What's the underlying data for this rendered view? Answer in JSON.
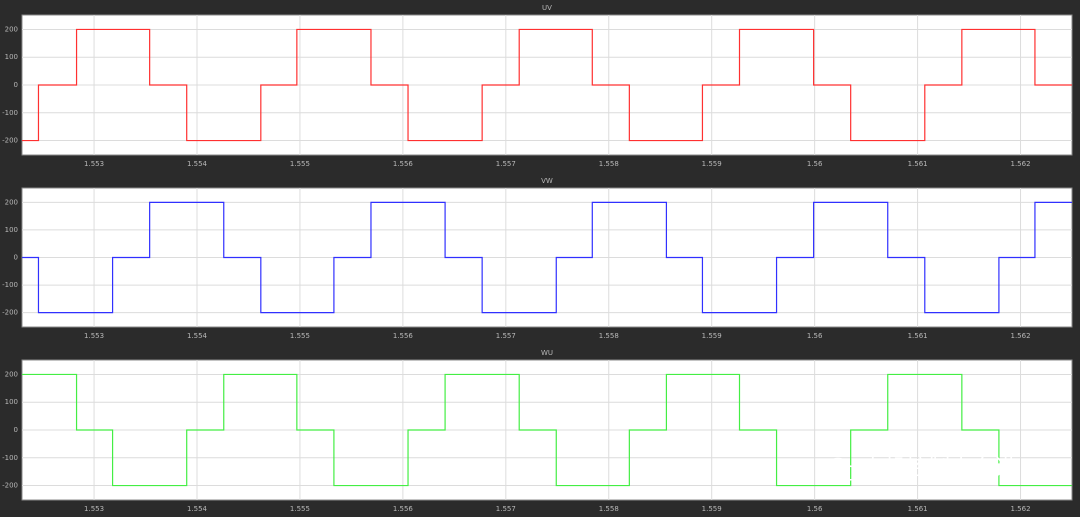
{
  "chart_data": [
    {
      "type": "line",
      "title": "UV",
      "xlim": [
        1.5523,
        1.5625
      ],
      "ylim": [
        -252,
        252
      ],
      "xticks": [
        1.553,
        1.554,
        1.555,
        1.556,
        1.557,
        1.558,
        1.559,
        1.56,
        1.561,
        1.562
      ],
      "yticks": [
        200,
        100,
        0,
        -100,
        -200
      ],
      "grid": true,
      "series": [
        {
          "name": "UV",
          "color": "#ff3030",
          "x": [
            1.5523,
            1.55246,
            1.55246,
            1.55283,
            1.55283,
            1.55354,
            1.55354,
            1.5539,
            1.5539,
            1.55462,
            1.55462,
            1.55497,
            1.55497,
            1.55569,
            1.55569,
            1.55605,
            1.55605,
            1.55677,
            1.55677,
            1.55713,
            1.55713,
            1.55784,
            1.55784,
            1.5582,
            1.5582,
            1.55891,
            1.55891,
            1.55927,
            1.55927,
            1.55999,
            1.55999,
            1.56035,
            1.56035,
            1.56107,
            1.56107,
            1.56143,
            1.56143,
            1.56214,
            1.56214,
            1.5625
          ],
          "values": [
            -200,
            -200,
            0,
            0,
            200,
            200,
            0,
            0,
            -200,
            -200,
            0,
            0,
            200,
            200,
            0,
            0,
            -200,
            -200,
            0,
            0,
            200,
            200,
            0,
            0,
            -200,
            -200,
            0,
            0,
            200,
            200,
            0,
            0,
            -200,
            -200,
            0,
            0,
            200,
            200,
            0,
            0
          ]
        }
      ]
    },
    {
      "type": "line",
      "title": "VW",
      "xlim": [
        1.5523,
        1.5625
      ],
      "ylim": [
        -252,
        252
      ],
      "xticks": [
        1.553,
        1.554,
        1.555,
        1.556,
        1.557,
        1.558,
        1.559,
        1.56,
        1.561,
        1.562
      ],
      "yticks": [
        200,
        100,
        0,
        -100,
        -200
      ],
      "grid": true,
      "series": [
        {
          "name": "VW",
          "color": "#3030ff",
          "x": [
            1.5523,
            1.55246,
            1.55246,
            1.55318,
            1.55318,
            1.55354,
            1.55354,
            1.55426,
            1.55426,
            1.55462,
            1.55462,
            1.55533,
            1.55533,
            1.55569,
            1.55569,
            1.55641,
            1.55641,
            1.55677,
            1.55677,
            1.55749,
            1.55749,
            1.55784,
            1.55784,
            1.55856,
            1.55856,
            1.55891,
            1.55891,
            1.55963,
            1.55963,
            1.55999,
            1.55999,
            1.56071,
            1.56071,
            1.56107,
            1.56107,
            1.56179,
            1.56179,
            1.56214,
            1.56214,
            1.5625
          ],
          "values": [
            0,
            0,
            -200,
            -200,
            0,
            0,
            200,
            200,
            0,
            0,
            -200,
            -200,
            0,
            0,
            200,
            200,
            0,
            0,
            -200,
            -200,
            0,
            0,
            200,
            200,
            0,
            0,
            -200,
            -200,
            0,
            0,
            200,
            200,
            0,
            0,
            -200,
            -200,
            0,
            0,
            200,
            200
          ]
        }
      ]
    },
    {
      "type": "line",
      "title": "WU",
      "xlim": [
        1.5523,
        1.5625
      ],
      "ylim": [
        -252,
        252
      ],
      "xticks": [
        1.553,
        1.554,
        1.555,
        1.556,
        1.557,
        1.558,
        1.559,
        1.56,
        1.561,
        1.562
      ],
      "yticks": [
        200,
        100,
        0,
        -100,
        -200
      ],
      "grid": true,
      "series": [
        {
          "name": "WU",
          "color": "#44ee44",
          "x": [
            1.5523,
            1.55283,
            1.55283,
            1.55318,
            1.55318,
            1.5539,
            1.5539,
            1.55426,
            1.55426,
            1.55497,
            1.55497,
            1.55533,
            1.55533,
            1.55605,
            1.55605,
            1.55641,
            1.55641,
            1.55713,
            1.55713,
            1.55749,
            1.55749,
            1.5582,
            1.5582,
            1.55856,
            1.55856,
            1.55927,
            1.55927,
            1.55963,
            1.55963,
            1.56035,
            1.56035,
            1.56071,
            1.56071,
            1.56143,
            1.56143,
            1.56179,
            1.56179,
            1.5625
          ],
          "values": [
            200,
            200,
            0,
            0,
            -200,
            -200,
            0,
            0,
            200,
            200,
            0,
            0,
            -200,
            -200,
            0,
            0,
            200,
            200,
            0,
            0,
            -200,
            -200,
            0,
            0,
            200,
            200,
            0,
            0,
            -200,
            -200,
            0,
            0,
            200,
            200,
            0,
            0,
            -200,
            -200
          ]
        }
      ]
    }
  ],
  "watermark": "电机控制小白讲"
}
